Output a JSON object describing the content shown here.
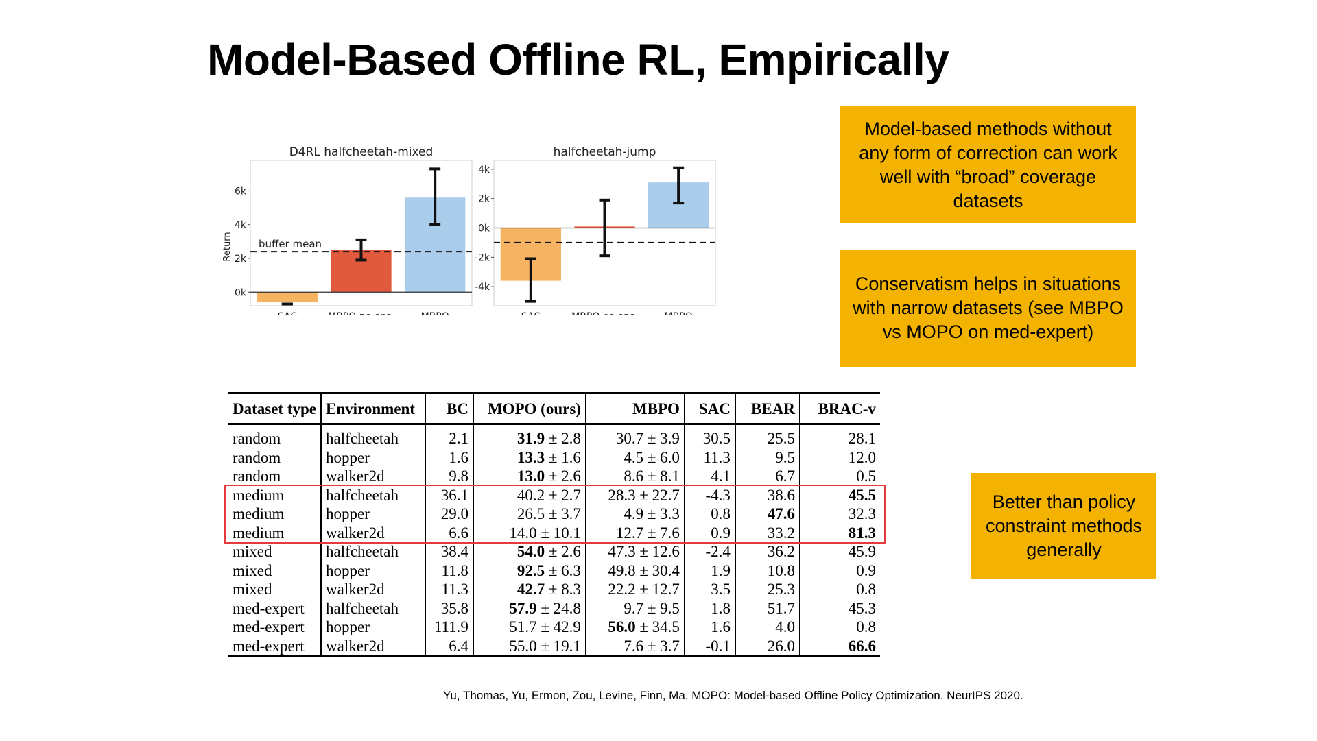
{
  "slide": {
    "title": "Model-Based Offline RL, Empirically",
    "citation": "Yu, Thomas, Yu, Ermon, Zou, Levine, Finn, Ma. MOPO: Model-based Offline Policy Optimization. NeurIPS 2020."
  },
  "callouts": [
    {
      "text": "Model-based methods without any form of correction can work well with “broad” coverage datasets",
      "color": "#F4B300"
    },
    {
      "text": "Conservatism helps in situations with narrow datasets (see MBPO vs MOPO on med-expert)",
      "color": "#F4B300"
    },
    {
      "text": "Better than policy constraint methods generally",
      "color": "#F4B300"
    }
  ],
  "chart_data": [
    {
      "type": "bar",
      "title": "D4RL halfcheetah-mixed",
      "ylabel": "Return",
      "categories": [
        "SAC",
        "MBPO no ens.",
        "MBPO"
      ],
      "values": [
        -600,
        2500,
        5600
      ],
      "error_low": [
        -700,
        1900,
        4000
      ],
      "error_high": [
        -700,
        3100,
        7300
      ],
      "colors": [
        "#F6B362",
        "#E15A3D",
        "#A9CDEB"
      ],
      "yticks": [
        "0k",
        "2k",
        "4k",
        "6k"
      ],
      "ylim": [
        -800,
        7800
      ],
      "reference_line": {
        "label": "buffer mean",
        "value": 2400
      }
    },
    {
      "type": "bar",
      "title": "halfcheetah-jump",
      "categories": [
        "SAC",
        "MBPO no ens.",
        "MBPO"
      ],
      "values": [
        -3600,
        100,
        3100
      ],
      "error_low": [
        -5000,
        -1900,
        1700
      ],
      "error_high": [
        -2100,
        1900,
        4100
      ],
      "colors": [
        "#F6B362",
        "#E15A3D",
        "#A9CDEB"
      ],
      "yticks": [
        "-4k",
        "-2k",
        "0k",
        "2k",
        "4k"
      ],
      "ylim": [
        -5300,
        4600
      ],
      "reference_line": {
        "label": "",
        "value": -1000
      }
    }
  ],
  "table": {
    "headers": [
      "Dataset type",
      "Environment",
      "BC",
      "MOPO (ours)",
      "MBPO",
      "SAC",
      "BEAR",
      "BRAC-v"
    ],
    "rows": [
      {
        "dataset": "random",
        "env": "halfcheetah",
        "bc": "2.1",
        "mopo_b": "31.9",
        "mopo_r": " ± 2.8",
        "mbpo_b": "",
        "mbpo_r": "30.7 ± 3.9",
        "sac": "30.5",
        "bear": "25.5",
        "bear_bold": false,
        "brac": "28.1",
        "brac_bold": false
      },
      {
        "dataset": "random",
        "env": "hopper",
        "bc": "1.6",
        "mopo_b": "13.3",
        "mopo_r": " ± 1.6",
        "mbpo_b": "",
        "mbpo_r": "4.5 ± 6.0",
        "sac": "11.3",
        "bear": "9.5",
        "bear_bold": false,
        "brac": "12.0",
        "brac_bold": false
      },
      {
        "dataset": "random",
        "env": "walker2d",
        "bc": "9.8",
        "mopo_b": "13.0",
        "mopo_r": " ± 2.6",
        "mbpo_b": "",
        "mbpo_r": "8.6 ± 8.1",
        "sac": "4.1",
        "bear": "6.7",
        "bear_bold": false,
        "brac": "0.5",
        "brac_bold": false
      },
      {
        "dataset": "medium",
        "env": "halfcheetah",
        "bc": "36.1",
        "mopo_b": "",
        "mopo_r": "40.2 ± 2.7",
        "mbpo_b": "",
        "mbpo_r": "28.3 ± 22.7",
        "sac": "-4.3",
        "bear": "38.6",
        "bear_bold": false,
        "brac": "45.5",
        "brac_bold": true
      },
      {
        "dataset": "medium",
        "env": "hopper",
        "bc": "29.0",
        "mopo_b": "",
        "mopo_r": "26.5 ± 3.7",
        "mbpo_b": "",
        "mbpo_r": "4.9 ± 3.3",
        "sac": "0.8",
        "bear": "47.6",
        "bear_bold": true,
        "brac": "32.3",
        "brac_bold": false
      },
      {
        "dataset": "medium",
        "env": "walker2d",
        "bc": "6.6",
        "mopo_b": "",
        "mopo_r": "14.0 ± 10.1",
        "mbpo_b": "",
        "mbpo_r": "12.7 ± 7.6",
        "sac": "0.9",
        "bear": "33.2",
        "bear_bold": false,
        "brac": "81.3",
        "brac_bold": true
      },
      {
        "dataset": "mixed",
        "env": "halfcheetah",
        "bc": "38.4",
        "mopo_b": "54.0",
        "mopo_r": " ± 2.6",
        "mbpo_b": "",
        "mbpo_r": "47.3 ± 12.6",
        "sac": "-2.4",
        "bear": "36.2",
        "bear_bold": false,
        "brac": "45.9",
        "brac_bold": false
      },
      {
        "dataset": "mixed",
        "env": "hopper",
        "bc": "11.8",
        "mopo_b": "92.5",
        "mopo_r": " ± 6.3",
        "mbpo_b": "",
        "mbpo_r": "49.8 ± 30.4",
        "sac": "1.9",
        "bear": "10.8",
        "bear_bold": false,
        "brac": "0.9",
        "brac_bold": false
      },
      {
        "dataset": "mixed",
        "env": "walker2d",
        "bc": "11.3",
        "mopo_b": "42.7",
        "mopo_r": " ± 8.3",
        "mbpo_b": "",
        "mbpo_r": "22.2 ± 12.7",
        "sac": "3.5",
        "bear": "25.3",
        "bear_bold": false,
        "brac": "0.8",
        "brac_bold": false
      },
      {
        "dataset": "med-expert",
        "env": "halfcheetah",
        "bc": "35.8",
        "mopo_b": "57.9",
        "mopo_r": " ± 24.8",
        "mbpo_b": "",
        "mbpo_r": "9.7 ± 9.5",
        "sac": "1.8",
        "bear": "51.7",
        "bear_bold": false,
        "brac": "45.3",
        "brac_bold": false
      },
      {
        "dataset": "med-expert",
        "env": "hopper",
        "bc": "111.9",
        "mopo_b": "",
        "mopo_r": "51.7 ± 42.9",
        "mbpo_b": "56.0",
        "mbpo_r": " ± 34.5",
        "sac": "1.6",
        "bear": "4.0",
        "bear_bold": false,
        "brac": "0.8",
        "brac_bold": false
      },
      {
        "dataset": "med-expert",
        "env": "walker2d",
        "bc": "6.4",
        "mopo_b": "",
        "mopo_r": "55.0 ± 19.1",
        "mbpo_b": "",
        "mbpo_r": "7.6 ± 3.7",
        "sac": "-0.1",
        "bear": "26.0",
        "bear_bold": false,
        "brac": "66.6",
        "brac_bold": true
      }
    ],
    "highlight_color": "#E33B3B"
  }
}
